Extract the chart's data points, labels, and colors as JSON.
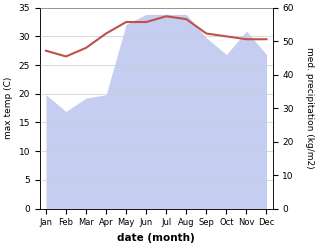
{
  "months": [
    "Jan",
    "Feb",
    "Mar",
    "Apr",
    "May",
    "Jun",
    "Jul",
    "Aug",
    "Sep",
    "Oct",
    "Nov",
    "Dec"
  ],
  "month_positions": [
    0,
    1,
    2,
    3,
    4,
    5,
    6,
    7,
    8,
    9,
    10,
    11
  ],
  "max_temp": [
    27.5,
    26.5,
    28.0,
    30.5,
    32.5,
    32.5,
    33.5,
    33.0,
    30.5,
    30.0,
    29.5,
    29.5
  ],
  "precipitation": [
    34,
    29,
    33,
    34,
    55,
    58,
    58,
    58,
    51,
    46,
    53,
    46
  ],
  "temp_color": "#c0504d",
  "precip_fill_color": "#c5cef0",
  "temp_ylim": [
    0,
    35
  ],
  "precip_ylim": [
    0,
    60
  ],
  "temp_yticks": [
    0,
    5,
    10,
    15,
    20,
    25,
    30,
    35
  ],
  "precip_yticks": [
    0,
    10,
    20,
    30,
    40,
    50,
    60
  ],
  "ylabel_left": "max temp (C)",
  "ylabel_right": "med. precipitation (kg/m2)",
  "xlabel": "date (month)",
  "figsize": [
    3.18,
    2.47
  ],
  "dpi": 100
}
